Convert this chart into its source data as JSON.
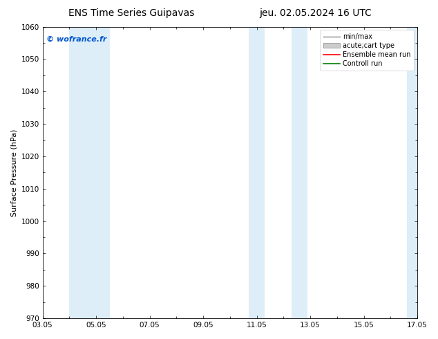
{
  "title_left": "ENS Time Series Guipavas",
  "title_right": "jeu. 02.05.2024 16 UTC",
  "ylabel": "Surface Pressure (hPa)",
  "ylim": [
    970,
    1060
  ],
  "yticks": [
    970,
    980,
    990,
    1000,
    1010,
    1020,
    1030,
    1040,
    1050,
    1060
  ],
  "xlim": [
    0,
    14
  ],
  "xtick_labels": [
    "03.05",
    "05.05",
    "07.05",
    "09.05",
    "11.05",
    "13.05",
    "15.05",
    "17.05"
  ],
  "xtick_positions": [
    0,
    2,
    4,
    6,
    8,
    10,
    12,
    14
  ],
  "watermark": "© wofrance.fr",
  "watermark_color": "#0055cc",
  "bg_color": "#ffffff",
  "shaded_bands": [
    {
      "x_start": 1.0,
      "x_end": 2.5
    },
    {
      "x_start": 7.7,
      "x_end": 8.3
    },
    {
      "x_start": 9.3,
      "x_end": 9.9
    },
    {
      "x_start": 13.6,
      "x_end": 14.0
    }
  ],
  "shaded_color": "#ddeef8",
  "legend_entries": [
    {
      "label": "min/max",
      "type": "errorbar",
      "color": "#aaaaaa"
    },
    {
      "label": "acute;cart type",
      "type": "box",
      "color": "#c8c8c8"
    },
    {
      "label": "Ensemble mean run",
      "type": "line",
      "color": "#ff0000"
    },
    {
      "label": "Controll run",
      "type": "line",
      "color": "#008000"
    }
  ],
  "title_fontsize": 10,
  "axis_fontsize": 8,
  "tick_fontsize": 7.5,
  "legend_fontsize": 7
}
